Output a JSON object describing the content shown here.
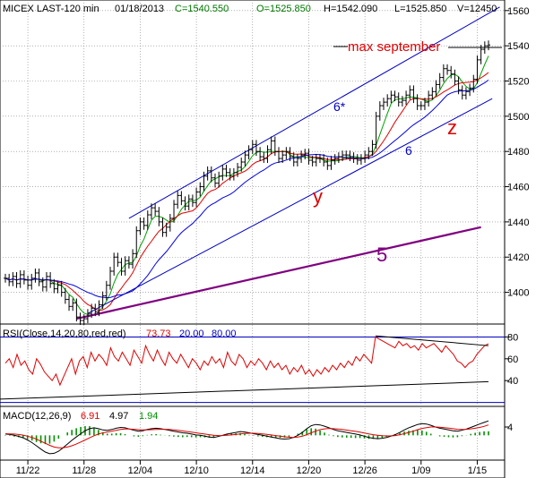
{
  "header": {
    "instrument": "MICEX LAST-120 min",
    "date": "01/18/2013",
    "close": "C=1540.550",
    "open": "O=1525.850",
    "high": "H=1542.090",
    "low": "L=1525.850",
    "volume": "V=12450"
  },
  "colors": {
    "price": "#000000",
    "ma_fast": "#00a000",
    "ma_mid": "#e00000",
    "ma_slow": "#0000e0",
    "channel": "#0000c0",
    "trend5": "#800080",
    "annotation_red": "#e00000",
    "rsi": "#e00000",
    "macd": "#000000",
    "macd_signal": "#e00000",
    "macd_hist": "#009000"
  },
  "chart_data": [
    {
      "type": "line",
      "panel": "price",
      "ylim": [
        1382,
        1566
      ],
      "y_ticks": [
        1400,
        1420,
        1440,
        1460,
        1480,
        1500,
        1520,
        1540,
        1560
      ],
      "x_ticks": [
        "11/22",
        "11/28",
        "12/04",
        "12/10",
        "12/14",
        "12/20",
        "12/26",
        "1/09",
        "1/15"
      ],
      "x_tick_index": [
        6,
        21,
        36,
        51,
        66,
        81,
        96,
        111,
        126
      ],
      "annotations": [
        {
          "text": "max september",
          "value": 1543
        },
        {
          "text": "6*"
        },
        {
          "text": "6"
        },
        {
          "text": "y"
        },
        {
          "text": "z"
        },
        {
          "text": "5"
        }
      ],
      "close": [
        1408,
        1406,
        1409,
        1405,
        1410,
        1407,
        1404,
        1408,
        1411,
        1406,
        1403,
        1409,
        1405,
        1402,
        1404,
        1400,
        1396,
        1392,
        1394,
        1386,
        1384,
        1385,
        1388,
        1391,
        1389,
        1393,
        1398,
        1404,
        1412,
        1420,
        1417,
        1412,
        1418,
        1416,
        1422,
        1435,
        1440,
        1438,
        1444,
        1448,
        1446,
        1440,
        1434,
        1437,
        1442,
        1450,
        1455,
        1452,
        1449,
        1453,
        1451,
        1457,
        1460,
        1466,
        1469,
        1465,
        1462,
        1466,
        1470,
        1468,
        1466,
        1468,
        1471,
        1474,
        1478,
        1481,
        1484,
        1480,
        1477,
        1476,
        1481,
        1486,
        1480,
        1476,
        1478,
        1480,
        1477,
        1474,
        1476,
        1478,
        1479,
        1475,
        1474,
        1476,
        1476,
        1474,
        1472,
        1475,
        1476,
        1477,
        1478,
        1478,
        1477,
        1476,
        1475,
        1476,
        1478,
        1480,
        1484,
        1500,
        1506,
        1508,
        1510,
        1512,
        1511,
        1508,
        1509,
        1512,
        1515,
        1510,
        1506,
        1506,
        1508,
        1512,
        1514,
        1518,
        1522,
        1527,
        1526,
        1524,
        1520,
        1515,
        1512,
        1514,
        1516,
        1521,
        1532,
        1538,
        1540,
        1540.5
      ]
    },
    {
      "type": "line",
      "panel": "RSI",
      "title": "RSI(Close,14,20,80,red,red)",
      "last_value": "73.73",
      "lower_level": "20.00",
      "upper_level": "80.00",
      "y_ticks": [
        40,
        60,
        80
      ],
      "ylim": [
        18,
        82
      ],
      "values": [
        56,
        60,
        52,
        64,
        54,
        58,
        50,
        46,
        60,
        55,
        48,
        44,
        40,
        46,
        36,
        44,
        52,
        60,
        46,
        58,
        62,
        52,
        66,
        58,
        64,
        60,
        54,
        70,
        62,
        58,
        66,
        60,
        54,
        68,
        62,
        56,
        72,
        64,
        58,
        68,
        60,
        54,
        66,
        60,
        56,
        64,
        58,
        52,
        60,
        56,
        50,
        58,
        54,
        62,
        56,
        60,
        52,
        66,
        58,
        54,
        64,
        60,
        52,
        58,
        54,
        60,
        56,
        50,
        58,
        52,
        56,
        50,
        54,
        46,
        52,
        48,
        54,
        46,
        50,
        44,
        50,
        46,
        52,
        48,
        54,
        50,
        56,
        52,
        58,
        54,
        62,
        58,
        64,
        60,
        56,
        80,
        78,
        76,
        74,
        72,
        70,
        76,
        72,
        74,
        70,
        72,
        68,
        74,
        70,
        72,
        74,
        70,
        66,
        72,
        68,
        64,
        58,
        56,
        52,
        56,
        58,
        64,
        68,
        72,
        73.73
      ]
    },
    {
      "type": "line",
      "panel": "MACD",
      "title": "MACD(12,26,9)",
      "macd_value": "6.91",
      "signal_value": "4.97",
      "histogram_value": "1.94",
      "y_ticks": [
        4
      ],
      "ylim": [
        -11,
        7
      ],
      "values": [
        0.6,
        0.4,
        0.0,
        -0.5,
        -1.2,
        -2.2,
        -3.5,
        -5.0,
        -6.6,
        -8.0,
        -8.8,
        -8.6,
        -7.6,
        -6.0,
        -4.2,
        -2.4,
        -0.8,
        0.8,
        2.2,
        3.2,
        3.6,
        3.2,
        2.6,
        2.4,
        2.8,
        3.4,
        3.8,
        3.6,
        3.0,
        2.4,
        2.0,
        2.2,
        2.8,
        3.2,
        3.4,
        3.2,
        2.8,
        2.4,
        2.0,
        1.6,
        1.2,
        1.0,
        0.6,
        0.2,
        0.0,
        -0.4,
        -0.8,
        -1.0,
        -0.6,
        0.0,
        0.6,
        1.0,
        1.4,
        1.8,
        1.6,
        1.2,
        0.8,
        0.4,
        0.0,
        -0.4,
        -0.8,
        -1.2,
        -1.6,
        -1.8,
        -1.6,
        -1.0,
        0.0,
        1.4,
        3.2,
        4.6,
        5.2,
        5.0,
        4.4,
        3.6,
        2.8,
        2.2,
        1.8,
        1.4,
        1.0,
        0.6,
        0.2,
        -0.4,
        -1.0,
        -1.4,
        -1.6,
        -1.4,
        -1.0,
        -0.4,
        0.4,
        1.4,
        2.6,
        3.6,
        4.4,
        5.2,
        5.6,
        5.4,
        4.8,
        4.0,
        3.4,
        3.0,
        2.6,
        2.2,
        2.0,
        2.4,
        3.0,
        3.8,
        4.6,
        5.4,
        6.2,
        6.91
      ],
      "signal": [
        0.8,
        0.7,
        0.6,
        0.4,
        0.1,
        -0.4,
        -1.0,
        -1.8,
        -2.8,
        -3.8,
        -4.8,
        -5.6,
        -6.0,
        -6.0,
        -5.6,
        -5.0,
        -4.2,
        -3.2,
        -2.2,
        -1.2,
        -0.2,
        0.6,
        1.2,
        1.6,
        2.0,
        2.4,
        2.8,
        3.0,
        3.0,
        2.9,
        2.7,
        2.6,
        2.6,
        2.7,
        2.8,
        2.9,
        2.9,
        2.8,
        2.6,
        2.4,
        2.1,
        1.8,
        1.5,
        1.2,
        0.9,
        0.6,
        0.3,
        0.0,
        -0.1,
        -0.1,
        0.0,
        0.2,
        0.4,
        0.7,
        0.9,
        1.0,
        1.0,
        0.9,
        0.7,
        0.5,
        0.2,
        -0.1,
        -0.4,
        -0.7,
        -0.9,
        -1.0,
        -0.8,
        -0.4,
        0.3,
        1.2,
        2.0,
        2.7,
        3.1,
        3.3,
        3.2,
        3.0,
        2.8,
        2.5,
        2.2,
        1.9,
        1.5,
        1.1,
        0.7,
        0.3,
        0.0,
        -0.2,
        -0.3,
        -0.3,
        -0.1,
        0.3,
        0.8,
        1.4,
        2.0,
        2.7,
        3.3,
        3.7,
        4.0,
        4.0,
        3.9,
        3.7,
        3.5,
        3.2,
        2.9,
        2.8,
        2.9,
        3.1,
        3.4,
        3.8,
        4.3,
        4.97
      ]
    }
  ]
}
